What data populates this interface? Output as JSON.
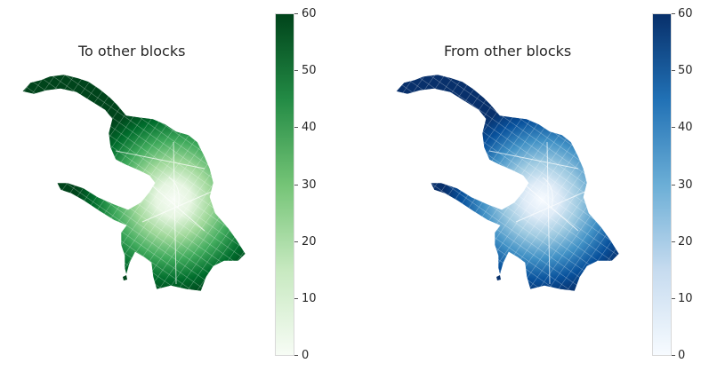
{
  "maps": [
    {
      "title": "To other blocks",
      "colormap": "Greens",
      "color_low": "#f7fcf5",
      "color_mid": "#74c476",
      "color_high": "#00441b",
      "colorbar": {
        "min": 0,
        "max": 60,
        "ticks": [
          "0",
          "10",
          "20",
          "30",
          "40",
          "50",
          "60"
        ]
      }
    },
    {
      "title": "From other blocks",
      "colormap": "Blues",
      "color_low": "#f7fbff",
      "color_mid": "#6baed6",
      "color_high": "#08306b",
      "colorbar": {
        "min": 0,
        "max": 60,
        "ticks": [
          "0",
          "10",
          "20",
          "30",
          "40",
          "50",
          "60"
        ]
      }
    }
  ]
}
